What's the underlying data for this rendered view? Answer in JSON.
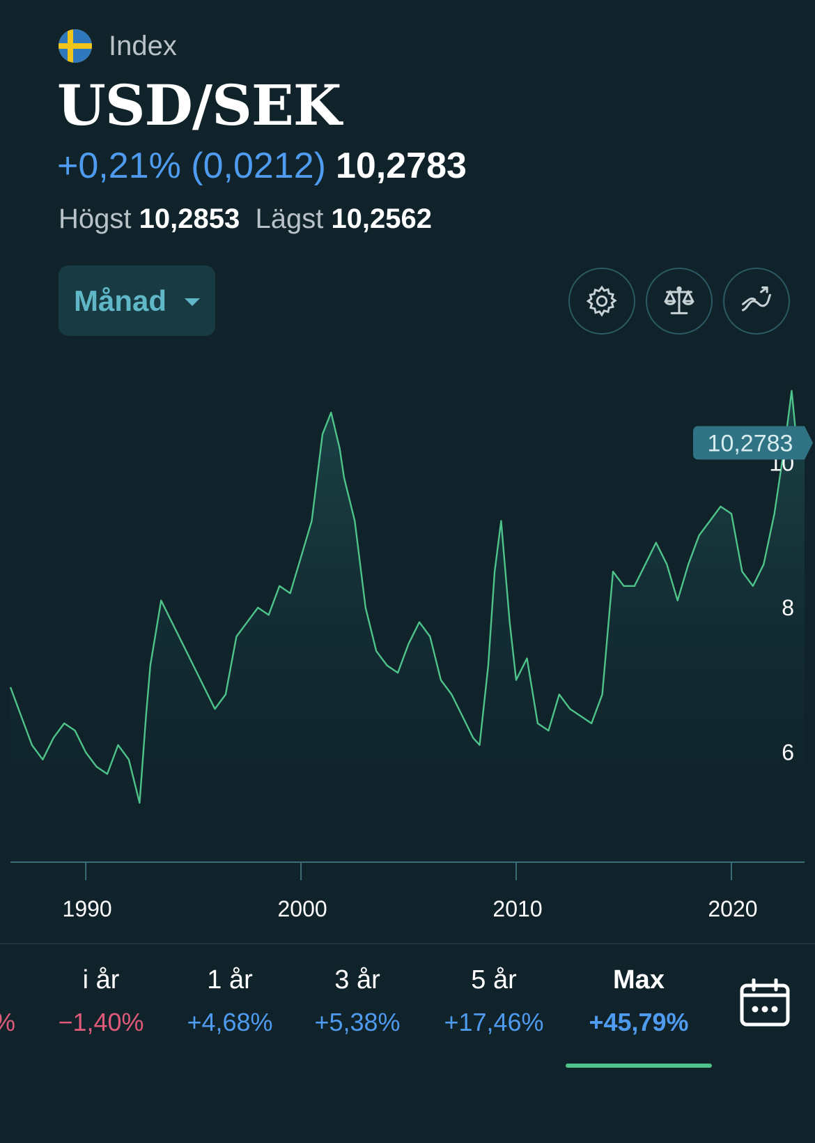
{
  "header": {
    "type_label": "Index",
    "title": "USD/SEK",
    "change": "+0,21% (0,0212)",
    "price": "10,2783",
    "high_label": "Högst",
    "high_value": "10,2853",
    "low_label": "Lägst",
    "low_value": "10,2562"
  },
  "toolbar": {
    "period_label": "Månad",
    "icons": [
      "gear-icon",
      "scale-icon",
      "chart-trend-icon"
    ]
  },
  "colors": {
    "background": "#10222a",
    "line": "#4ec38a",
    "positive": "#4f9bf0",
    "negative": "#e05a7a",
    "accent": "#5fb7c8"
  },
  "chart_data": {
    "type": "area",
    "title": "",
    "xlabel": "",
    "ylabel": "",
    "current_value_label": "10,2783",
    "x_ticks": [
      "1990",
      "2000",
      "2010",
      "2020"
    ],
    "y_ticks": [
      "6",
      "8",
      "10"
    ],
    "ylim": [
      4.5,
      11.2
    ],
    "xlim": [
      1986.5,
      2023.4
    ],
    "series": [
      {
        "x": [
          1986.5,
          1987.0,
          1987.5,
          1988.0,
          1988.5,
          1989.0,
          1989.5,
          1990.0,
          1990.5,
          1991.0,
          1991.5,
          1992.0,
          1992.5,
          1992.8,
          1993.0,
          1993.5,
          1994.0,
          1994.5,
          1995.0,
          1995.5,
          1996.0,
          1996.5,
          1997.0,
          1997.5,
          1998.0,
          1998.5,
          1999.0,
          1999.5,
          2000.0,
          2000.5,
          2001.0,
          2001.4,
          2001.8,
          2002.0,
          2002.5,
          2003.0,
          2003.5,
          2004.0,
          2004.5,
          2005.0,
          2005.5,
          2006.0,
          2006.5,
          2007.0,
          2007.5,
          2008.0,
          2008.3,
          2008.7,
          2009.0,
          2009.3,
          2009.7,
          2010.0,
          2010.5,
          2011.0,
          2011.5,
          2012.0,
          2012.5,
          2013.0,
          2013.5,
          2014.0,
          2014.5,
          2015.0,
          2015.5,
          2016.0,
          2016.5,
          2017.0,
          2017.5,
          2018.0,
          2018.5,
          2019.0,
          2019.5,
          2020.0,
          2020.5,
          2021.0,
          2021.5,
          2022.0,
          2022.5,
          2022.8,
          2023.0,
          2023.4
        ],
        "y": [
          6.9,
          6.5,
          6.1,
          5.9,
          6.2,
          6.4,
          6.3,
          6.0,
          5.8,
          5.7,
          6.1,
          5.9,
          5.3,
          6.5,
          7.2,
          8.1,
          7.8,
          7.5,
          7.2,
          6.9,
          6.6,
          6.8,
          7.6,
          7.8,
          8.0,
          7.9,
          8.3,
          8.2,
          8.7,
          9.2,
          10.4,
          10.7,
          10.2,
          9.8,
          9.2,
          8.0,
          7.4,
          7.2,
          7.1,
          7.5,
          7.8,
          7.6,
          7.0,
          6.8,
          6.5,
          6.2,
          6.1,
          7.2,
          8.5,
          9.2,
          7.8,
          7.0,
          7.3,
          6.4,
          6.3,
          6.8,
          6.6,
          6.5,
          6.4,
          6.8,
          8.5,
          8.3,
          8.3,
          8.6,
          8.9,
          8.6,
          8.1,
          8.6,
          9.0,
          9.2,
          9.4,
          9.3,
          8.5,
          8.3,
          8.6,
          9.3,
          10.3,
          11.0,
          10.4,
          10.28
        ]
      }
    ]
  },
  "tabs": [
    {
      "label": "",
      "value": "%"
    },
    {
      "label": "i år",
      "value": "−1,40%"
    },
    {
      "label": "1 år",
      "value": "+4,68%"
    },
    {
      "label": "3 år",
      "value": "+5,38%"
    },
    {
      "label": "5 år",
      "value": "+17,46%"
    },
    {
      "label": "Max",
      "value": "+45,79%"
    }
  ]
}
